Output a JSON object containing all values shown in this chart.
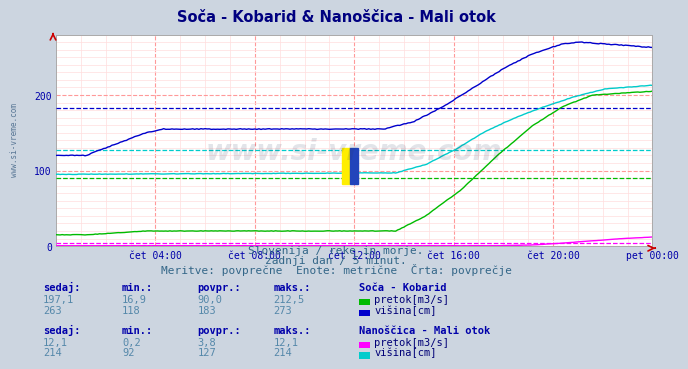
{
  "title": "Soča - Kobarid & Nanoščica - Mali otok",
  "title_color": "#000080",
  "bg_color": "#ccd5e0",
  "plot_bg_color": "#ffffff",
  "grid_color_major": "#ff9999",
  "grid_color_minor": "#ffdddd",
  "tick_color": "#0000aa",
  "watermark": "www.si-vreme.com",
  "subtitle1": "Slovenija / reke in morje.",
  "subtitle2": "zadnji dan / 5 minut.",
  "subtitle3": "Meritve: povprečne  Enote: metrične  Črta: povprečje",
  "xtick_labels": [
    "čet 04:00",
    "čet 08:00",
    "čet 12:00",
    "čet 16:00",
    "čet 20:00",
    "pet 00:00"
  ],
  "ylim": [
    0,
    280
  ],
  "colors": {
    "soca_pretok": "#00bb00",
    "soca_visina": "#0000cc",
    "nano_pretok": "#ff00ff",
    "nano_visina": "#00cccc"
  },
  "avg_lines": {
    "soca_pretok_avg": 90.0,
    "soca_visina_avg": 183,
    "nano_pretok_avg": 3.8,
    "nano_visina_avg": 127
  },
  "table_header_color": "#0000aa",
  "table_num_color": "#5588aa",
  "table_label_color": "#000077",
  "soca_title": "Soča - Kobarid",
  "nano_title": "Nanoščica - Mali otok",
  "soca_pretok_row": [
    "197,1",
    "16,9",
    "90,0",
    "212,5"
  ],
  "soca_visina_row": [
    "263",
    "118",
    "183",
    "273"
  ],
  "nano_pretok_row": [
    "12,1",
    "0,2",
    "3,8",
    "12,1"
  ],
  "nano_visina_row": [
    "214",
    "92",
    "127",
    "214"
  ],
  "col_headers": [
    "sedaj:",
    "min.:",
    "povpr.:",
    "maks.:"
  ]
}
